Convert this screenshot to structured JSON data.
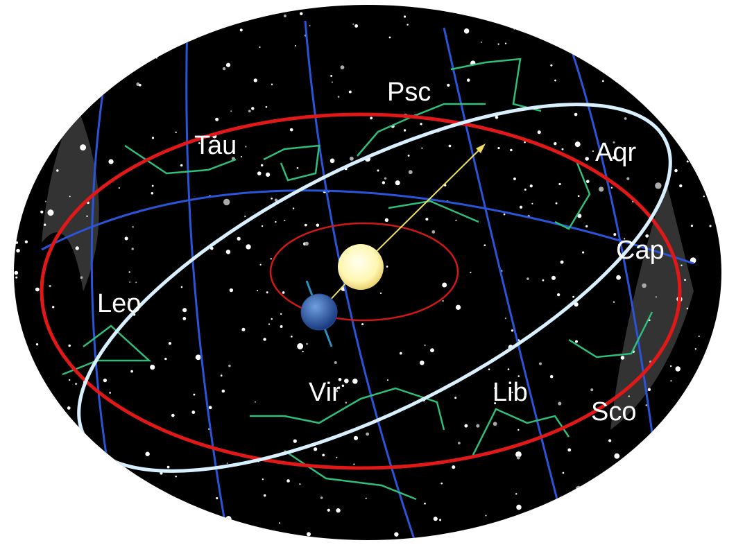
{
  "constellations": [
    "Psc",
    "Tau",
    "Aqr",
    "Cap",
    "Leo",
    "Vir",
    "Lib",
    "Sco"
  ]
}
